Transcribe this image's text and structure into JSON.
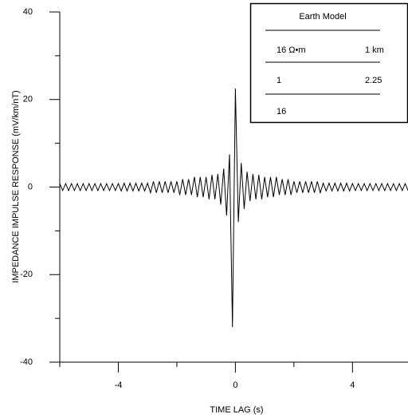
{
  "chart_data": {
    "type": "line",
    "xlabel": "TIME LAG (s)",
    "ylabel": "IMPEDANCE IMPULSE RESPONSE (mV/km/nT)",
    "xlim": [
      -6,
      5.87
    ],
    "ylim": [
      -40,
      40
    ],
    "xticks": [
      -4,
      0,
      4
    ],
    "yticks": [
      -40,
      -20,
      0,
      20,
      40
    ],
    "xminor": [
      -6,
      -2,
      2
    ],
    "yminor": [
      -30,
      -10,
      10,
      30
    ],
    "series": [
      {
        "color": "#000000",
        "x": [
          -6.0,
          -5.9,
          -5.8,
          -5.7,
          -5.6,
          -5.5,
          -5.4,
          -5.3,
          -5.2,
          -5.1,
          -5.0,
          -4.9,
          -4.8,
          -4.7,
          -4.6,
          -4.5,
          -4.4,
          -4.3,
          -4.2,
          -4.1,
          -4.0,
          -3.9,
          -3.8,
          -3.7,
          -3.6,
          -3.5,
          -3.4,
          -3.3,
          -3.2,
          -3.1,
          -3.0,
          -2.9,
          -2.8,
          -2.7,
          -2.6,
          -2.5,
          -2.4,
          -2.3,
          -2.2,
          -2.1,
          -2.0,
          -1.9,
          -1.8,
          -1.7,
          -1.6,
          -1.5,
          -1.4,
          -1.3,
          -1.2,
          -1.1,
          -1.0,
          -0.9,
          -0.8,
          -0.7,
          -0.6,
          -0.5,
          -0.4,
          -0.3,
          -0.2,
          -0.1,
          0.0,
          0.1,
          0.2,
          0.3,
          0.4,
          0.5,
          0.6,
          0.7,
          0.8,
          0.9,
          1.0,
          1.1,
          1.2,
          1.3,
          1.4,
          1.5,
          1.6,
          1.7,
          1.8,
          1.9,
          2.0,
          2.1,
          2.2,
          2.3,
          2.4,
          2.5,
          2.6,
          2.7,
          2.8,
          2.9,
          3.0,
          3.1,
          3.2,
          3.3,
          3.4,
          3.5,
          3.6,
          3.7,
          3.8,
          3.9,
          4.0,
          4.1,
          4.2,
          4.3,
          4.4,
          4.5,
          4.6,
          4.7,
          4.8,
          4.9,
          5.0,
          5.1,
          5.2,
          5.3,
          5.4,
          5.5,
          5.6,
          5.7,
          5.8,
          5.9
        ],
        "values": [
          0.8,
          -0.8,
          0.8,
          -0.8,
          0.8,
          -0.8,
          0.8,
          -0.8,
          0.8,
          -0.8,
          0.8,
          -0.8,
          0.8,
          -0.8,
          0.8,
          -0.8,
          0.8,
          -0.8,
          0.8,
          -0.8,
          0.8,
          -0.9,
          0.9,
          -0.9,
          0.9,
          -0.9,
          0.9,
          -0.9,
          0.9,
          -0.9,
          0.9,
          -1.3,
          1.3,
          -1.3,
          1.3,
          -1.3,
          1.3,
          -1.3,
          1.3,
          -1.3,
          1.3,
          -1.8,
          1.8,
          -1.8,
          1.8,
          -1.8,
          2.3,
          -2.3,
          2.3,
          -2.3,
          2.3,
          -2.8,
          2.8,
          -2.8,
          3,
          -4,
          4.2,
          -6.5,
          7.5,
          -32,
          22.5,
          -8,
          5.5,
          -5,
          3.5,
          -3.2,
          3,
          -2.8,
          2.8,
          -2.8,
          2.3,
          -2.3,
          2.3,
          -2.3,
          2.3,
          -1.8,
          1.8,
          -1.8,
          1.8,
          -1.8,
          1.3,
          -1.3,
          1.3,
          -1.3,
          1.3,
          -1.3,
          1.3,
          -1.3,
          1.3,
          -1.3,
          0.9,
          -0.9,
          0.9,
          -0.9,
          0.9,
          -0.9,
          0.9,
          -0.9,
          0.9,
          -0.9,
          0.8,
          -0.8,
          0.8,
          -0.8,
          0.8,
          -0.8,
          0.8,
          -0.8,
          0.8,
          -0.8,
          0.8,
          -0.8,
          0.8,
          -0.8,
          0.8,
          -0.8,
          0.8,
          -0.8,
          0.8,
          -0.8
        ]
      }
    ],
    "annotation_table": {
      "title": "Earth Model",
      "rows": [
        [
          "16 Ω•m",
          "1 km"
        ],
        [
          "1",
          "2.25"
        ],
        [
          "16"
        ]
      ]
    }
  }
}
